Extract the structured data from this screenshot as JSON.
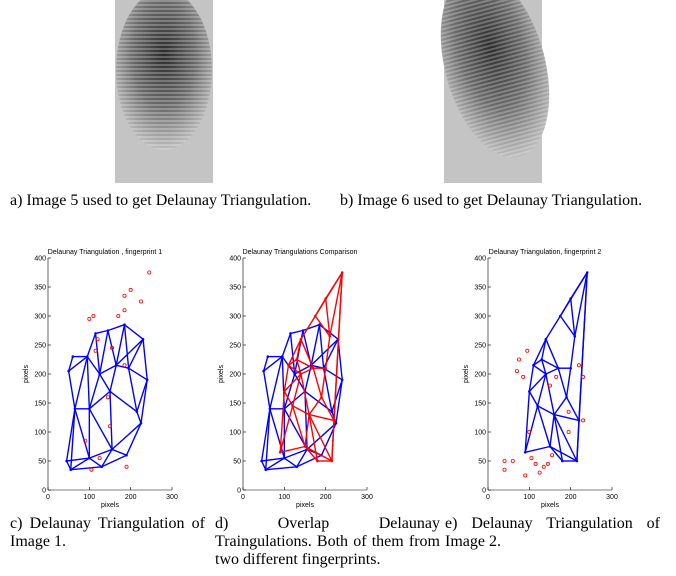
{
  "captions": {
    "a": "a) Image 5 used to get Delaunay Triangulation.",
    "b": "b) Image 6 used to get Delaunay Triangulation.",
    "c": "c) Delaunay Triangulation of Image 1.",
    "d": "d) Overlap Delaunay Traingulations. Both of them from two different fingerprints.",
    "e": "e) Delaunay Triangulation of Image 2."
  },
  "chart_data": [
    {
      "type": "triangulation",
      "title": "Delaunay Triangulation , fingerprint 1",
      "xlabel": "pixels",
      "ylabel": "pixels",
      "xlim": [
        0,
        300
      ],
      "ylim": [
        0,
        400
      ],
      "xticks": [
        0,
        100,
        200,
        300
      ],
      "yticks": [
        0,
        50,
        100,
        150,
        200,
        250,
        300,
        350,
        400
      ],
      "edge_color": "#0000ff",
      "point_color": "#ff0000",
      "nodes": {
        "x": [
          45,
          55,
          100,
          130,
          155,
          190,
          225,
          215,
          240,
          230,
          185,
          145,
          115,
          95,
          60,
          50,
          65,
          100,
          125,
          165,
          195,
          150
        ],
        "y": [
          50,
          35,
          55,
          40,
          70,
          60,
          115,
          135,
          190,
          260,
          285,
          275,
          270,
          230,
          230,
          205,
          140,
          140,
          200,
          215,
          210,
          170
        ]
      },
      "edges": [
        [
          0,
          1
        ],
        [
          1,
          2
        ],
        [
          0,
          2
        ],
        [
          2,
          3
        ],
        [
          1,
          3
        ],
        [
          3,
          4
        ],
        [
          2,
          4
        ],
        [
          4,
          5
        ],
        [
          3,
          5
        ],
        [
          5,
          6
        ],
        [
          4,
          6
        ],
        [
          6,
          7
        ],
        [
          7,
          8
        ],
        [
          6,
          8
        ],
        [
          8,
          9
        ],
        [
          9,
          10
        ],
        [
          10,
          11
        ],
        [
          11,
          12
        ],
        [
          12,
          13
        ],
        [
          13,
          14
        ],
        [
          14,
          15
        ],
        [
          15,
          16
        ],
        [
          16,
          0
        ],
        [
          16,
          2
        ],
        [
          16,
          17
        ],
        [
          17,
          2
        ],
        [
          17,
          4
        ],
        [
          17,
          21
        ],
        [
          21,
          4
        ],
        [
          21,
          7
        ],
        [
          21,
          19
        ],
        [
          19,
          20
        ],
        [
          20,
          8
        ],
        [
          20,
          7
        ],
        [
          20,
          9
        ],
        [
          19,
          10
        ],
        [
          19,
          11
        ],
        [
          18,
          11
        ],
        [
          18,
          12
        ],
        [
          18,
          13
        ],
        [
          18,
          17
        ],
        [
          18,
          21
        ],
        [
          18,
          19
        ],
        [
          13,
          15
        ],
        [
          13,
          16
        ],
        [
          13,
          17
        ],
        [
          16,
          1
        ],
        [
          10,
          20
        ],
        [
          9,
          19
        ]
      ],
      "points": {
        "x": [
          245,
          200,
          185,
          225,
          185,
          110,
          100,
          170,
          120,
          155,
          115,
          145,
          150,
          90,
          190,
          105,
          125,
          185
        ],
        "y": [
          375,
          345,
          335,
          325,
          310,
          300,
          295,
          300,
          260,
          245,
          240,
          160,
          110,
          85,
          40,
          35,
          55,
          215
        ]
      }
    },
    {
      "type": "overlay",
      "title": "Delaunay Triangulations Comparison",
      "xlabel": "pixels",
      "ylabel": "pixels",
      "xlim": [
        0,
        300
      ],
      "ylim": [
        0,
        400
      ],
      "xticks": [
        0,
        100,
        200,
        300
      ],
      "yticks": [
        0,
        50,
        100,
        150,
        200,
        250,
        300,
        350,
        400
      ],
      "colors": [
        "#0000ff",
        "#ff0000"
      ]
    },
    {
      "type": "triangulation",
      "title": "Delaunay Triangulation, fingerprint 2",
      "xlabel": "pixels",
      "ylabel": "pixels",
      "xlim": [
        0,
        300
      ],
      "ylim": [
        0,
        400
      ],
      "xticks": [
        0,
        100,
        200,
        300
      ],
      "yticks": [
        0,
        50,
        100,
        150,
        200,
        250,
        300,
        350,
        400
      ],
      "edge_color": "#0000ff",
      "point_color": "#ff0000",
      "nodes": {
        "x": [
          90,
          150,
          215,
          180,
          240,
          175,
          140,
          110,
          100,
          120,
          160,
          190,
          200,
          210,
          170,
          140,
          220,
          200,
          130
        ],
        "y": [
          65,
          75,
          50,
          50,
          375,
          300,
          260,
          215,
          170,
          145,
          130,
          160,
          210,
          265,
          210,
          200,
          120,
          330,
          225
        ]
      },
      "edges": [
        [
          0,
          1
        ],
        [
          1,
          3
        ],
        [
          3,
          2
        ],
        [
          2,
          1
        ],
        [
          0,
          9
        ],
        [
          0,
          8
        ],
        [
          1,
          9
        ],
        [
          1,
          10
        ],
        [
          3,
          10
        ],
        [
          2,
          10
        ],
        [
          2,
          16
        ],
        [
          16,
          10
        ],
        [
          16,
          11
        ],
        [
          2,
          4
        ],
        [
          16,
          4
        ],
        [
          4,
          17
        ],
        [
          4,
          13
        ],
        [
          4,
          5
        ],
        [
          5,
          17
        ],
        [
          17,
          13
        ],
        [
          5,
          6
        ],
        [
          5,
          13
        ],
        [
          6,
          18
        ],
        [
          6,
          7
        ],
        [
          18,
          7
        ],
        [
          7,
          8
        ],
        [
          8,
          9
        ],
        [
          9,
          10
        ],
        [
          10,
          11
        ],
        [
          11,
          12
        ],
        [
          12,
          13
        ],
        [
          12,
          14
        ],
        [
          14,
          11
        ],
        [
          14,
          15
        ],
        [
          15,
          10
        ],
        [
          15,
          9
        ],
        [
          15,
          18
        ],
        [
          15,
          7
        ],
        [
          15,
          8
        ],
        [
          14,
          6
        ],
        [
          18,
          14
        ]
      ],
      "points": {
        "x": [
          40,
          40,
          60,
          90,
          105,
          115,
          125,
          135,
          145,
          155,
          100,
          70,
          75,
          95,
          85,
          230,
          230,
          220,
          195,
          195,
          150,
          165
        ],
        "y": [
          50,
          35,
          50,
          25,
          55,
          45,
          30,
          40,
          45,
          60,
          100,
          205,
          225,
          240,
          195,
          195,
          120,
          215,
          100,
          135,
          180,
          195
        ]
      }
    }
  ]
}
